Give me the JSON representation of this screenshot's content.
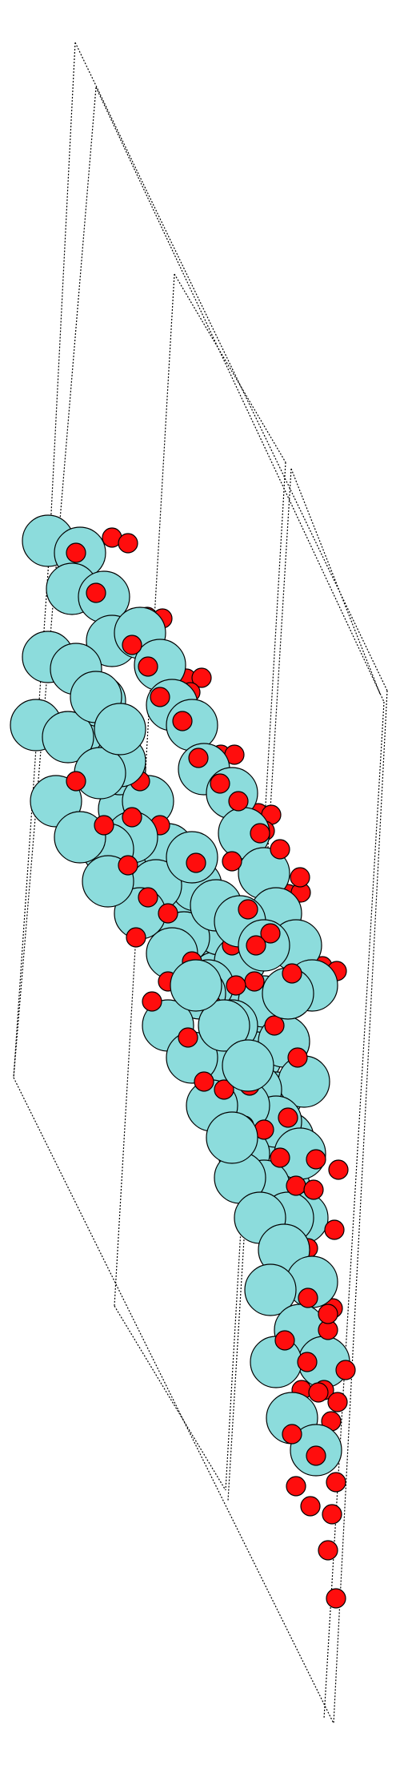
{
  "colors": {
    "background": "#ffffff",
    "large_atom_fill": "#8cdcdc",
    "small_atom_fill": "#ff0d0d",
    "atom_stroke": "#000000",
    "cell_edge": "#000000"
  },
  "cell_edges": {
    "style": "dotted"
  },
  "atoms": {
    "large_atom_name": "cyan-atom",
    "small_atom_name": "red-atom"
  }
}
